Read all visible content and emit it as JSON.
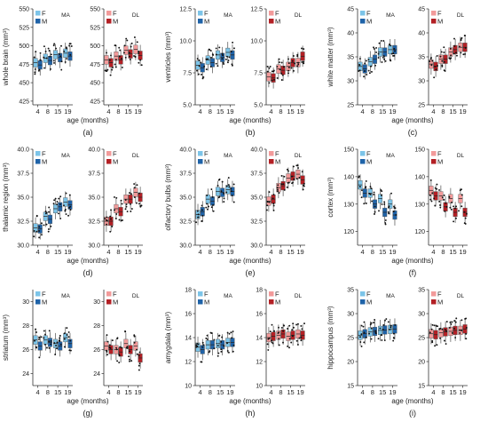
{
  "colors": {
    "MA_F": "#7cc4e8",
    "MA_M": "#1f63a8",
    "DL_F": "#f29a9a",
    "DL_M": "#b32025",
    "axis": "#333333",
    "point": "#111111"
  },
  "xlabel": "age (months)",
  "legend": {
    "F": "F",
    "M": "M"
  },
  "chart_data": [
    {
      "type": "box",
      "panel_label": "(a)",
      "ylabel": "whole brain (mm³)",
      "ylim": [
        420,
        550
      ],
      "yticks": [
        425,
        450,
        475,
        500,
        525,
        550
      ],
      "categories": [
        "4",
        "8",
        "15",
        "19"
      ],
      "groups": [
        {
          "name": "MA",
          "F_median": [
            477,
            483,
            488,
            490
          ],
          "M_median": [
            474,
            480,
            484,
            486
          ]
        },
        {
          "name": "DL",
          "F_median": [
            481,
            486,
            494,
            495
          ],
          "M_median": [
            477,
            481,
            489,
            487
          ]
        }
      ]
    },
    {
      "type": "box",
      "panel_label": "(b)",
      "ylabel": "ventricles (mm³)",
      "ylim": [
        5,
        12.5
      ],
      "yticks": [
        5.0,
        7.5,
        10.0,
        12.5
      ],
      "categories": [
        "4",
        "8",
        "15",
        "19"
      ],
      "groups": [
        {
          "name": "MA",
          "F_median": [
            8.1,
            8.5,
            8.9,
            9.1
          ],
          "M_median": [
            7.9,
            8.3,
            8.7,
            8.9
          ]
        },
        {
          "name": "DL",
          "F_median": [
            7.2,
            7.8,
            8.0,
            8.3
          ],
          "M_median": [
            7.1,
            7.7,
            8.3,
            8.8
          ]
        }
      ]
    },
    {
      "type": "box",
      "panel_label": "(c)",
      "ylabel": "white matter (mm³)",
      "ylim": [
        25,
        45
      ],
      "yticks": [
        25,
        30,
        35,
        40,
        45
      ],
      "categories": [
        "4",
        "8",
        "15",
        "19"
      ],
      "groups": [
        {
          "name": "MA",
          "F_median": [
            33,
            34,
            36,
            36.5
          ],
          "M_median": [
            32.5,
            34.5,
            36,
            36.5
          ]
        },
        {
          "name": "DL",
          "F_median": [
            33.5,
            34.5,
            36,
            37
          ],
          "M_median": [
            33,
            34.5,
            36.5,
            37
          ]
        }
      ]
    },
    {
      "type": "box",
      "panel_label": "(d)",
      "ylabel": "thalamic region (mm³)",
      "ylim": [
        30,
        40
      ],
      "yticks": [
        30.0,
        32.5,
        35.0,
        37.5,
        40.0
      ],
      "categories": [
        "4",
        "8",
        "15",
        "19"
      ],
      "groups": [
        {
          "name": "MA",
          "F_median": [
            31.8,
            33,
            33.8,
            34.5
          ],
          "M_median": [
            31.7,
            32.7,
            34,
            34.2
          ]
        },
        {
          "name": "DL",
          "F_median": [
            32.5,
            33.8,
            34.8,
            35.5
          ],
          "M_median": [
            32.5,
            33.5,
            34.8,
            35
          ]
        }
      ]
    },
    {
      "type": "box",
      "panel_label": "(e)",
      "ylabel": "olfactory bulbs (mm³)",
      "ylim": [
        30,
        40
      ],
      "yticks": [
        30.0,
        32.5,
        35.0,
        37.5,
        40.0
      ],
      "categories": [
        "4",
        "8",
        "15",
        "19"
      ],
      "groups": [
        {
          "name": "MA",
          "F_median": [
            33.2,
            34.8,
            35.6,
            35.8
          ],
          "M_median": [
            33.5,
            34.6,
            35.5,
            35.6
          ]
        },
        {
          "name": "DL",
          "F_median": [
            34.6,
            36,
            37,
            37.4
          ],
          "M_median": [
            34.8,
            36.2,
            37.2,
            36.8
          ]
        }
      ]
    },
    {
      "type": "box",
      "panel_label": "(f)",
      "ylabel": "cortex (mm³)",
      "ylim": [
        115,
        150
      ],
      "yticks": [
        120,
        130,
        140,
        150
      ],
      "categories": [
        "4",
        "8",
        "15",
        "19"
      ],
      "groups": [
        {
          "name": "MA",
          "F_median": [
            137,
            134,
            132,
            130
          ],
          "M_median": [
            134,
            130,
            127,
            126
          ]
        },
        {
          "name": "DL",
          "F_median": [
            135,
            133,
            132,
            132
          ],
          "M_median": [
            133,
            129,
            127,
            127
          ]
        }
      ]
    },
    {
      "type": "box",
      "panel_label": "(g)",
      "ylabel": "striatum (mm³)",
      "ylim": [
        23,
        31
      ],
      "yticks": [
        24,
        26,
        28,
        30
      ],
      "categories": [
        "4",
        "8",
        "15",
        "19"
      ],
      "groups": [
        {
          "name": "MA",
          "F_median": [
            26.8,
            26.8,
            26.5,
            27
          ],
          "M_median": [
            26.3,
            26.6,
            26.3,
            26.5
          ]
        },
        {
          "name": "DL",
          "F_median": [
            26.3,
            26,
            26.5,
            26.3
          ],
          "M_median": [
            26,
            25.8,
            26,
            25.3
          ]
        }
      ]
    },
    {
      "type": "box",
      "panel_label": "(h)",
      "ylabel": "amygdala (mm³)",
      "ylim": [
        10,
        18
      ],
      "yticks": [
        10,
        12,
        14,
        16,
        18
      ],
      "categories": [
        "4",
        "8",
        "15",
        "19"
      ],
      "groups": [
        {
          "name": "MA",
          "F_median": [
            13.2,
            13.4,
            13.5,
            13.6
          ],
          "M_median": [
            13,
            13.4,
            13.4,
            13.6
          ]
        },
        {
          "name": "DL",
          "F_median": [
            14,
            14.2,
            14.1,
            14.3
          ],
          "M_median": [
            14.1,
            14.3,
            14.2,
            14.2
          ]
        }
      ]
    },
    {
      "type": "box",
      "panel_label": "(i)",
      "ylabel": "hippocampus (mm³)",
      "ylim": [
        15,
        35
      ],
      "yticks": [
        15,
        20,
        25,
        30,
        35
      ],
      "categories": [
        "4",
        "8",
        "15",
        "19"
      ],
      "groups": [
        {
          "name": "MA",
          "F_median": [
            25.5,
            26.2,
            26.5,
            26.7
          ],
          "M_median": [
            25.8,
            26.3,
            26.6,
            26.8
          ]
        },
        {
          "name": "DL",
          "F_median": [
            25.8,
            26,
            26.3,
            26.5
          ],
          "M_median": [
            25.6,
            26.2,
            26.5,
            26.8
          ]
        }
      ]
    }
  ]
}
